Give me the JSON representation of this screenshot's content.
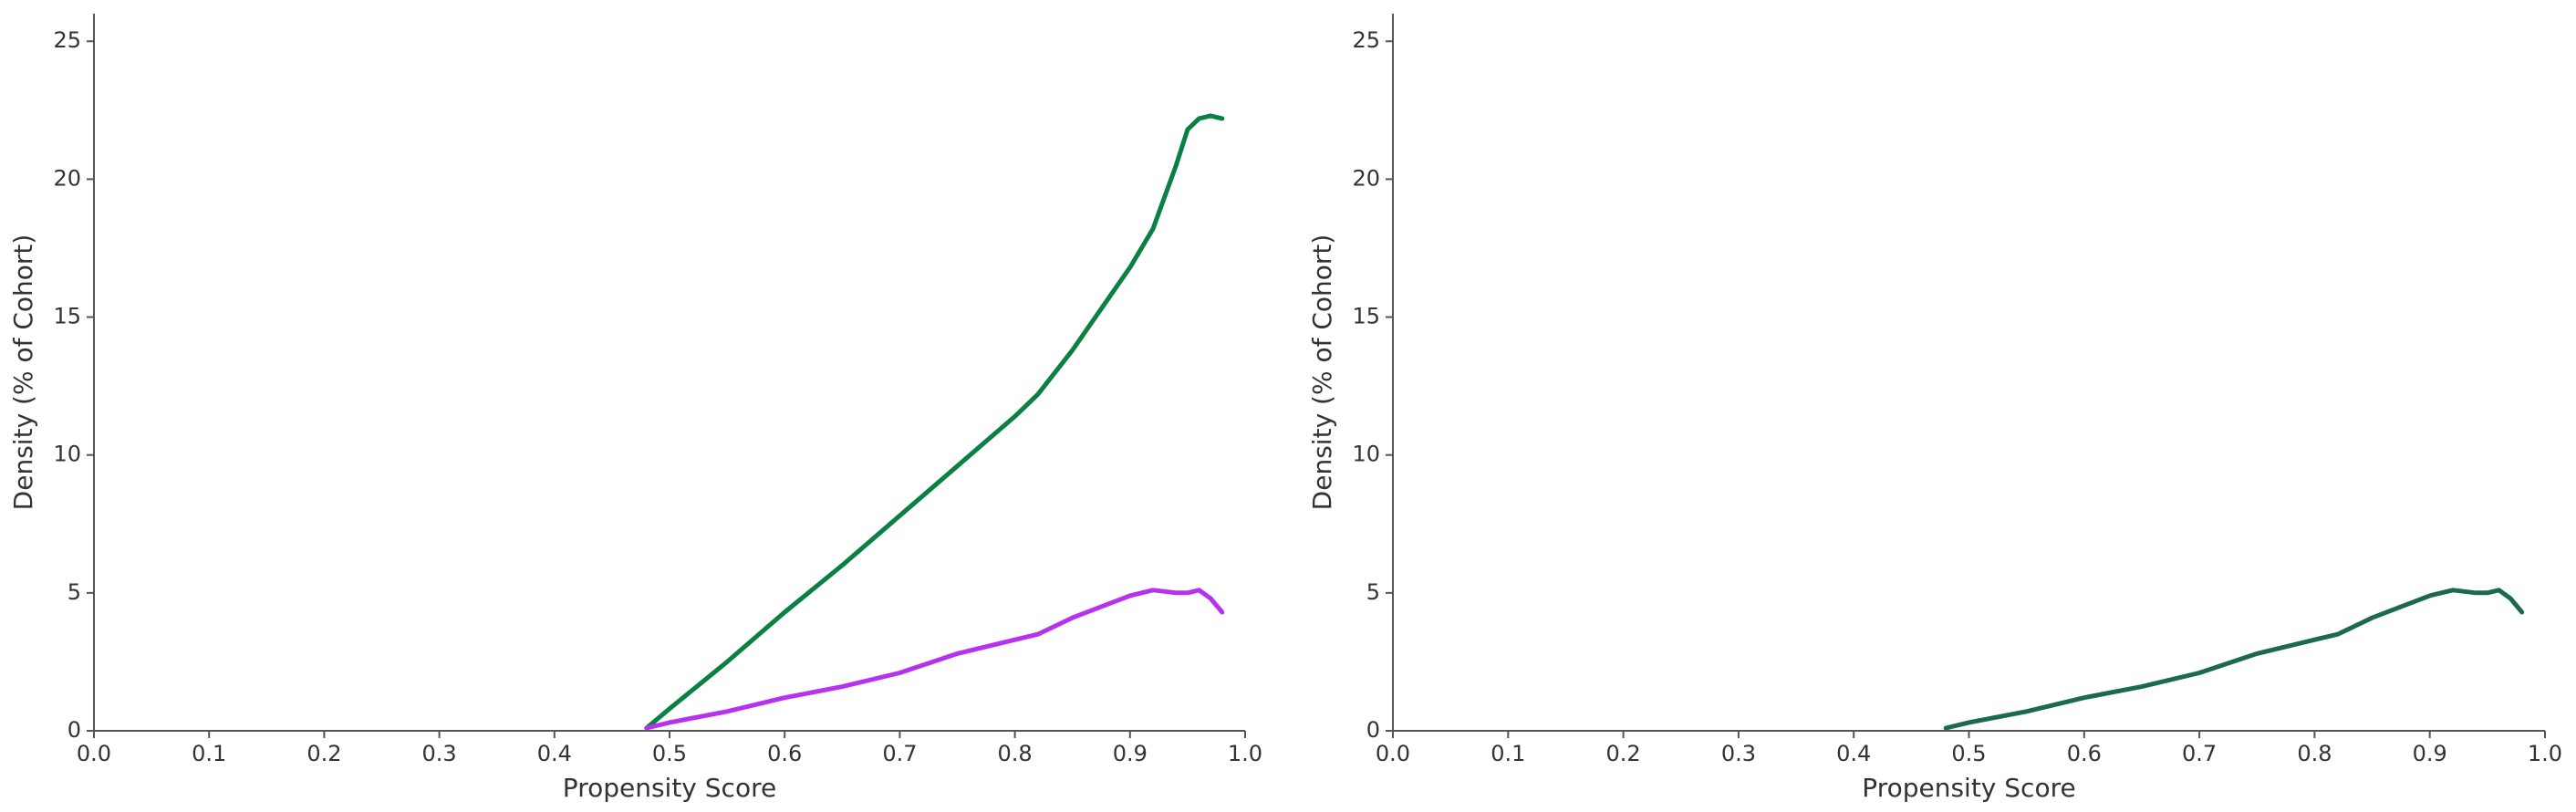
{
  "chart_data": [
    {
      "type": "line",
      "x_label": "Propensity Score",
      "y_label": "Density (% of Cohort)",
      "x": [
        0.48,
        0.5,
        0.55,
        0.6,
        0.65,
        0.7,
        0.75,
        0.8,
        0.82,
        0.85,
        0.9,
        0.92,
        0.94,
        0.95,
        0.96,
        0.97,
        0.98
      ],
      "series": [
        {
          "color": "#0a8043",
          "values": [
            0.1,
            0.8,
            2.5,
            4.3,
            6.0,
            7.8,
            9.6,
            11.4,
            12.2,
            13.8,
            16.8,
            18.2,
            20.5,
            21.8,
            22.2,
            22.3,
            22.2
          ]
        },
        {
          "color": "#b732ee",
          "values": [
            0.1,
            0.3,
            0.7,
            1.2,
            1.6,
            2.1,
            2.8,
            3.3,
            3.5,
            4.1,
            4.9,
            5.1,
            5.0,
            5.0,
            5.1,
            4.8,
            4.3
          ]
        }
      ],
      "xlim": [
        0,
        1
      ],
      "ylim": [
        0,
        26
      ],
      "xticks": [
        {
          "value": 0,
          "label": "0.0"
        },
        0.1,
        0.2,
        0.3,
        0.4,
        0.5,
        0.6,
        0.7,
        0.8,
        0.9,
        {
          "value": 1,
          "label": "1.0"
        }
      ],
      "yticks": [
        0,
        5,
        10,
        15,
        20,
        25
      ]
    },
    {
      "type": "line",
      "x_label": "Propensity Score",
      "y_label": "Density (% of Cohort)",
      "x": [
        0.48,
        0.5,
        0.55,
        0.6,
        0.65,
        0.7,
        0.75,
        0.8,
        0.82,
        0.85,
        0.9,
        0.92,
        0.94,
        0.95,
        0.96,
        0.97,
        0.98
      ],
      "series": [
        {
          "color": "#1b6b4b",
          "values": [
            0.1,
            0.3,
            0.7,
            1.2,
            1.6,
            2.1,
            2.8,
            3.3,
            3.5,
            4.1,
            4.9,
            5.1,
            5.0,
            5.0,
            5.1,
            4.8,
            4.3
          ]
        }
      ],
      "xlim": [
        0,
        1
      ],
      "ylim": [
        0,
        26
      ],
      "xticks": [
        {
          "value": 0,
          "label": "0.0"
        },
        0.1,
        0.2,
        0.3,
        0.4,
        0.5,
        0.6,
        0.7,
        0.8,
        0.9,
        {
          "value": 1,
          "label": "1.0"
        }
      ],
      "yticks": [
        0,
        5,
        10,
        15,
        20,
        25
      ]
    }
  ]
}
